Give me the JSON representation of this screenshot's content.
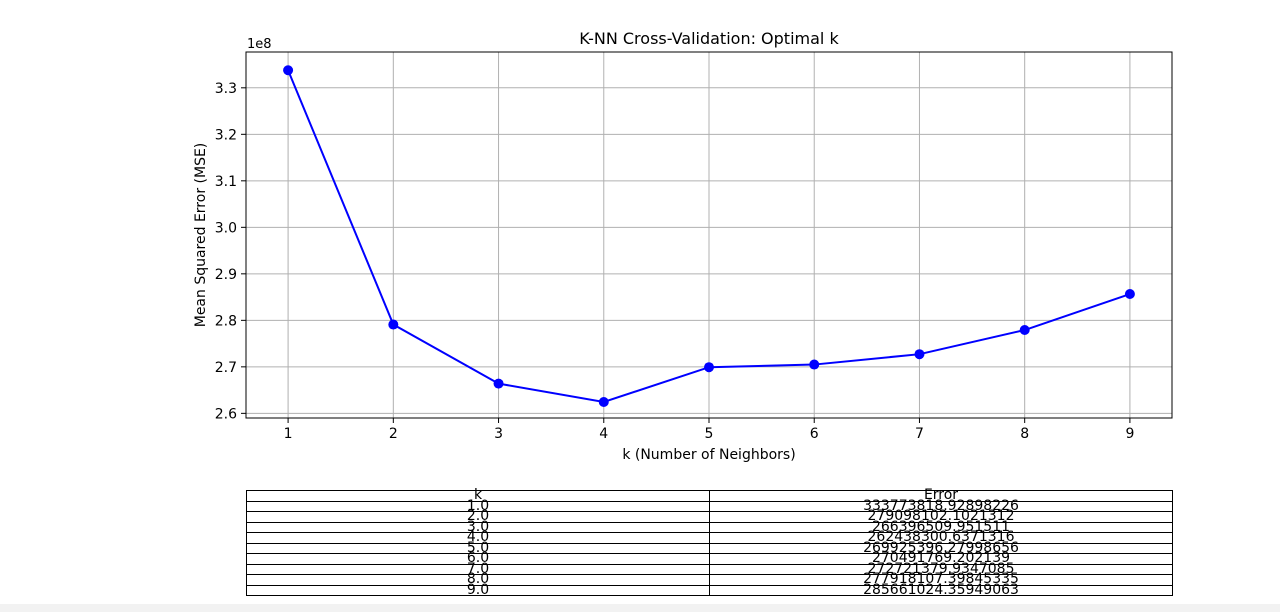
{
  "chart_data": {
    "type": "line",
    "title": "K-NN Cross-Validation: Optimal k",
    "xlabel": "k (Number of Neighbors)",
    "ylabel": "Mean Squared Error (MSE)",
    "y_offset_label": "1e8",
    "x": [
      1,
      2,
      3,
      4,
      5,
      6,
      7,
      8,
      9
    ],
    "values": [
      333773818.92898226,
      279098102.1021312,
      266396509.951511,
      262438300.6371316,
      269925396.27998656,
      270491769.202139,
      272721379.9347085,
      277918107.39845335,
      285661024.35949063
    ],
    "xlim": [
      0.6,
      9.4
    ],
    "ylim": [
      259000000,
      337700000
    ],
    "x_ticks": [
      "1",
      "2",
      "3",
      "4",
      "5",
      "6",
      "7",
      "8",
      "9"
    ],
    "y_ticks": [
      {
        "v": 260000000,
        "label": "2.6"
      },
      {
        "v": 270000000,
        "label": "2.7"
      },
      {
        "v": 280000000,
        "label": "2.8"
      },
      {
        "v": 290000000,
        "label": "2.9"
      },
      {
        "v": 300000000,
        "label": "3.0"
      },
      {
        "v": 310000000,
        "label": "3.1"
      },
      {
        "v": 320000000,
        "label": "3.2"
      },
      {
        "v": 330000000,
        "label": "3.3"
      }
    ],
    "grid": true,
    "line_color": "#0000ff",
    "marker": "circle"
  },
  "table": {
    "headers": [
      "k",
      "Error"
    ],
    "rows": [
      [
        "1.0",
        "333773818.92898226"
      ],
      [
        "2.0",
        "279098102.1021312"
      ],
      [
        "3.0",
        "266396509.951511"
      ],
      [
        "4.0",
        "262438300.6371316"
      ],
      [
        "5.0",
        "269925396.27998656"
      ],
      [
        "6.0",
        "270491769.202139"
      ],
      [
        "7.0",
        "272721379.9347085"
      ],
      [
        "8.0",
        "277918107.39845335"
      ],
      [
        "9.0",
        "285661024.35949063"
      ]
    ]
  }
}
